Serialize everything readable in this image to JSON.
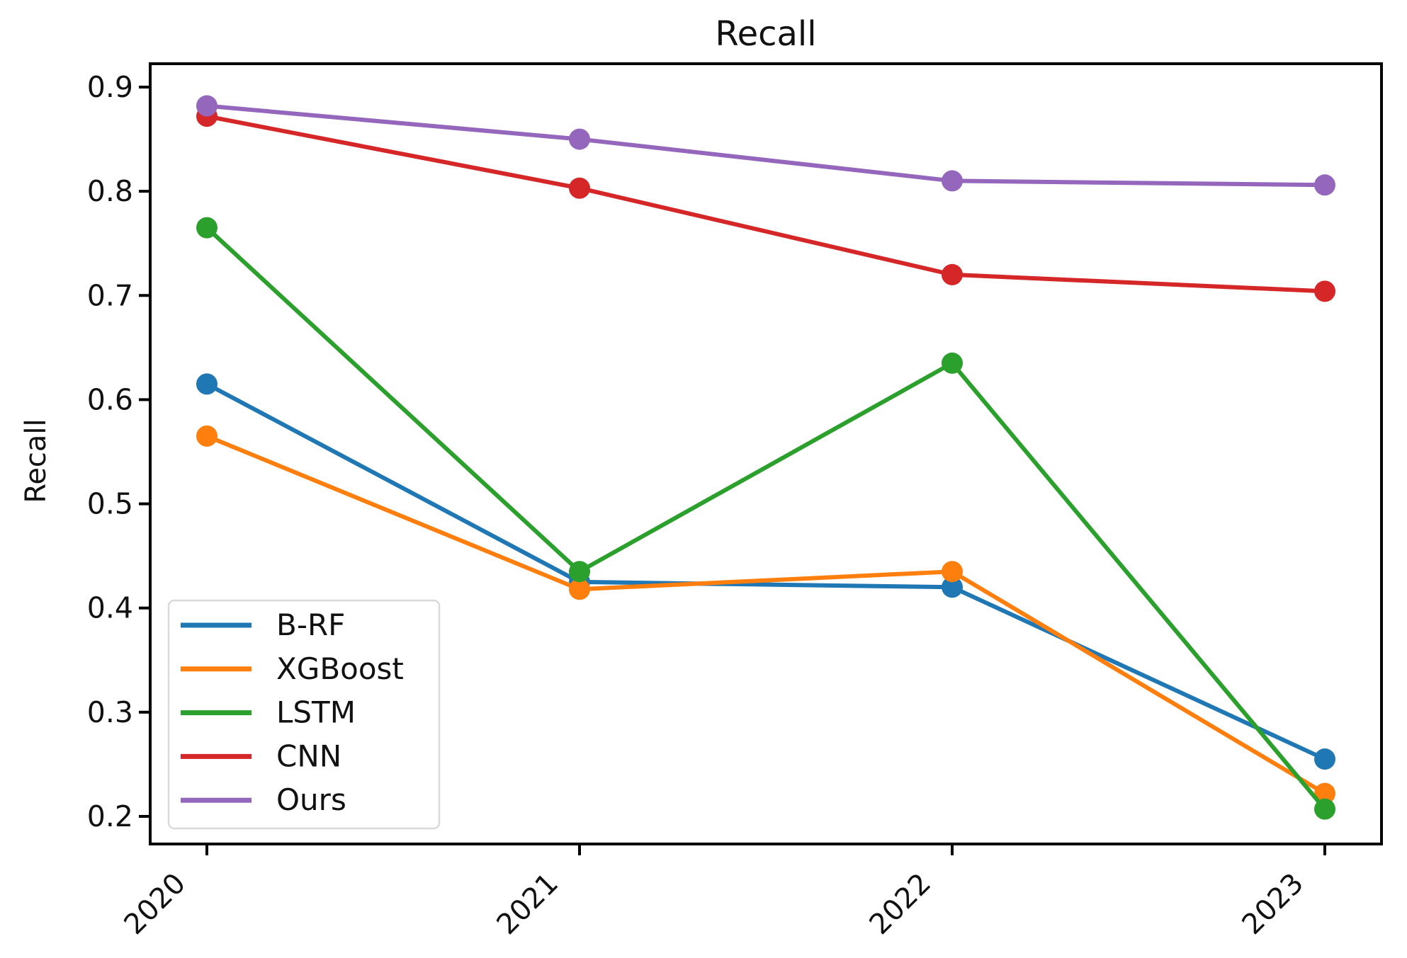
{
  "figure": {
    "background": "#ffffff",
    "axis_color": "#000000",
    "legend_border_color": "#d9d9d9",
    "legend_background": "#ffffff"
  },
  "chart_data": {
    "type": "line",
    "title": "Recall",
    "xlabel": "",
    "ylabel": "Recall",
    "categories": [
      "2020",
      "2021",
      "2022",
      "2023"
    ],
    "series": [
      {
        "name": "B-RF",
        "color": "#1f77b4",
        "values": [
          0.615,
          0.425,
          0.42,
          0.255
        ]
      },
      {
        "name": "XGBoost",
        "color": "#ff7f0e",
        "values": [
          0.565,
          0.418,
          0.435,
          0.222
        ]
      },
      {
        "name": "LSTM",
        "color": "#2ca02c",
        "values": [
          0.765,
          0.435,
          0.635,
          0.207
        ]
      },
      {
        "name": "CNN",
        "color": "#d62728",
        "values": [
          0.872,
          0.803,
          0.72,
          0.704
        ]
      },
      {
        "name": "Ours",
        "color": "#9467bd",
        "values": [
          0.882,
          0.85,
          0.81,
          0.806
        ]
      }
    ],
    "yticks": [
      0.9,
      0.8,
      0.7,
      0.6,
      0.5,
      0.4,
      0.3,
      0.2
    ],
    "ylim": [
      0.173,
      0.922
    ],
    "grid": false,
    "marker": "circle",
    "legend_position": "lower left",
    "x_tick_rotation": 45
  }
}
